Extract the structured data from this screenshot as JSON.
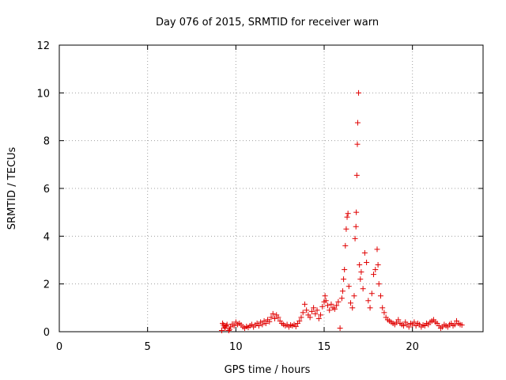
{
  "chart_data": {
    "type": "scatter",
    "title": "Day 076 of 2015, SRMTID for receiver warn",
    "xlabel": "GPS time / hours",
    "ylabel": "SRMTID / TECUs",
    "xlim": [
      0,
      24
    ],
    "ylim": [
      0,
      12
    ],
    "xticks": [
      0,
      5,
      10,
      15,
      20
    ],
    "yticks": [
      0,
      2,
      4,
      6,
      8,
      10,
      12
    ],
    "grid": true,
    "marker": "+",
    "color": "#e00000",
    "series": [
      {
        "name": "SRMTID",
        "points": [
          [
            9.2,
            0.05
          ],
          [
            9.25,
            0.35
          ],
          [
            9.3,
            0.28
          ],
          [
            9.35,
            0.2
          ],
          [
            9.4,
            0.15
          ],
          [
            9.45,
            0.25
          ],
          [
            9.5,
            0.3
          ],
          [
            9.6,
            0.05
          ],
          [
            9.65,
            0.1
          ],
          [
            9.7,
            0.2
          ],
          [
            9.8,
            0.32
          ],
          [
            9.9,
            0.25
          ],
          [
            10.0,
            0.4
          ],
          [
            10.1,
            0.3
          ],
          [
            10.2,
            0.35
          ],
          [
            10.3,
            0.28
          ],
          [
            10.4,
            0.2
          ],
          [
            10.5,
            0.15
          ],
          [
            10.6,
            0.22
          ],
          [
            10.7,
            0.18
          ],
          [
            10.8,
            0.25
          ],
          [
            10.9,
            0.3
          ],
          [
            11.0,
            0.2
          ],
          [
            11.1,
            0.28
          ],
          [
            11.2,
            0.35
          ],
          [
            11.3,
            0.25
          ],
          [
            11.4,
            0.4
          ],
          [
            11.5,
            0.3
          ],
          [
            11.6,
            0.45
          ],
          [
            11.7,
            0.35
          ],
          [
            11.8,
            0.5
          ],
          [
            11.9,
            0.42
          ],
          [
            12.0,
            0.6
          ],
          [
            12.1,
            0.75
          ],
          [
            12.2,
            0.55
          ],
          [
            12.3,
            0.7
          ],
          [
            12.4,
            0.6
          ],
          [
            12.5,
            0.45
          ],
          [
            12.6,
            0.35
          ],
          [
            12.7,
            0.3
          ],
          [
            12.8,
            0.25
          ],
          [
            12.9,
            0.3
          ],
          [
            13.0,
            0.2
          ],
          [
            13.1,
            0.28
          ],
          [
            13.2,
            0.25
          ],
          [
            13.3,
            0.3
          ],
          [
            13.4,
            0.22
          ],
          [
            13.5,
            0.35
          ],
          [
            13.6,
            0.45
          ],
          [
            13.7,
            0.6
          ],
          [
            13.8,
            0.8
          ],
          [
            13.9,
            1.15
          ],
          [
            14.0,
            0.9
          ],
          [
            14.1,
            0.7
          ],
          [
            14.2,
            0.6
          ],
          [
            14.3,
            0.85
          ],
          [
            14.4,
            1.0
          ],
          [
            14.5,
            0.75
          ],
          [
            14.6,
            0.9
          ],
          [
            14.7,
            0.55
          ],
          [
            14.8,
            0.7
          ],
          [
            14.9,
            1.05
          ],
          [
            15.0,
            1.25
          ],
          [
            15.05,
            1.5
          ],
          [
            15.1,
            1.3
          ],
          [
            15.2,
            1.1
          ],
          [
            15.3,
            0.9
          ],
          [
            15.4,
            1.15
          ],
          [
            15.5,
            1.0
          ],
          [
            15.6,
            0.95
          ],
          [
            15.7,
            1.1
          ],
          [
            15.8,
            1.25
          ],
          [
            15.9,
            0.15
          ],
          [
            16.0,
            1.4
          ],
          [
            16.05,
            1.7
          ],
          [
            16.1,
            2.2
          ],
          [
            16.15,
            2.6
          ],
          [
            16.2,
            3.6
          ],
          [
            16.25,
            4.3
          ],
          [
            16.3,
            4.8
          ],
          [
            16.35,
            4.95
          ],
          [
            16.4,
            1.9
          ],
          [
            16.5,
            1.2
          ],
          [
            16.6,
            1.0
          ],
          [
            16.7,
            1.5
          ],
          [
            16.75,
            3.9
          ],
          [
            16.8,
            4.4
          ],
          [
            16.82,
            5.0
          ],
          [
            16.85,
            6.55
          ],
          [
            16.88,
            7.85
          ],
          [
            16.9,
            8.75
          ],
          [
            16.95,
            10.0
          ],
          [
            17.0,
            2.8
          ],
          [
            17.05,
            2.2
          ],
          [
            17.1,
            2.5
          ],
          [
            17.2,
            1.8
          ],
          [
            17.3,
            3.3
          ],
          [
            17.4,
            2.9
          ],
          [
            17.5,
            1.3
          ],
          [
            17.6,
            1.0
          ],
          [
            17.7,
            1.6
          ],
          [
            17.8,
            2.4
          ],
          [
            17.9,
            2.6
          ],
          [
            18.0,
            3.45
          ],
          [
            18.05,
            2.8
          ],
          [
            18.1,
            2.0
          ],
          [
            18.2,
            1.5
          ],
          [
            18.3,
            1.0
          ],
          [
            18.4,
            0.8
          ],
          [
            18.5,
            0.6
          ],
          [
            18.6,
            0.5
          ],
          [
            18.7,
            0.45
          ],
          [
            18.8,
            0.4
          ],
          [
            18.9,
            0.35
          ],
          [
            19.0,
            0.3
          ],
          [
            19.1,
            0.4
          ],
          [
            19.2,
            0.5
          ],
          [
            19.3,
            0.35
          ],
          [
            19.4,
            0.3
          ],
          [
            19.5,
            0.25
          ],
          [
            19.6,
            0.4
          ],
          [
            19.7,
            0.3
          ],
          [
            19.8,
            0.2
          ],
          [
            19.9,
            0.35
          ],
          [
            20.0,
            0.3
          ],
          [
            20.1,
            0.4
          ],
          [
            20.2,
            0.25
          ],
          [
            20.3,
            0.35
          ],
          [
            20.4,
            0.3
          ],
          [
            20.5,
            0.2
          ],
          [
            20.6,
            0.28
          ],
          [
            20.7,
            0.25
          ],
          [
            20.8,
            0.35
          ],
          [
            20.9,
            0.3
          ],
          [
            21.0,
            0.4
          ],
          [
            21.1,
            0.45
          ],
          [
            21.2,
            0.5
          ],
          [
            21.3,
            0.4
          ],
          [
            21.4,
            0.35
          ],
          [
            21.5,
            0.25
          ],
          [
            21.6,
            0.15
          ],
          [
            21.7,
            0.2
          ],
          [
            21.8,
            0.3
          ],
          [
            21.9,
            0.25
          ],
          [
            22.0,
            0.2
          ],
          [
            22.1,
            0.3
          ],
          [
            22.2,
            0.35
          ],
          [
            22.3,
            0.25
          ],
          [
            22.4,
            0.3
          ],
          [
            22.5,
            0.45
          ],
          [
            22.6,
            0.35
          ],
          [
            22.7,
            0.3
          ],
          [
            22.8,
            0.28
          ]
        ]
      }
    ]
  }
}
